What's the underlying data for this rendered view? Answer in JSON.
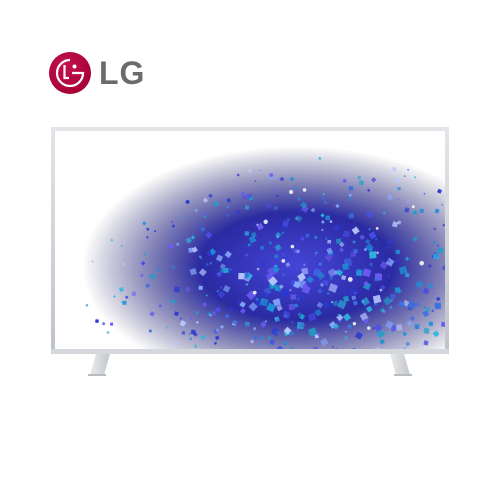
{
  "brand": {
    "name": "LG",
    "logo_color": "#a50034",
    "text_color": "#6b6b6b"
  },
  "product": {
    "image_subject": "tv-nanocell-particles",
    "frame_color": "#cfd2d6",
    "stand_color": "#d9dbde"
  }
}
